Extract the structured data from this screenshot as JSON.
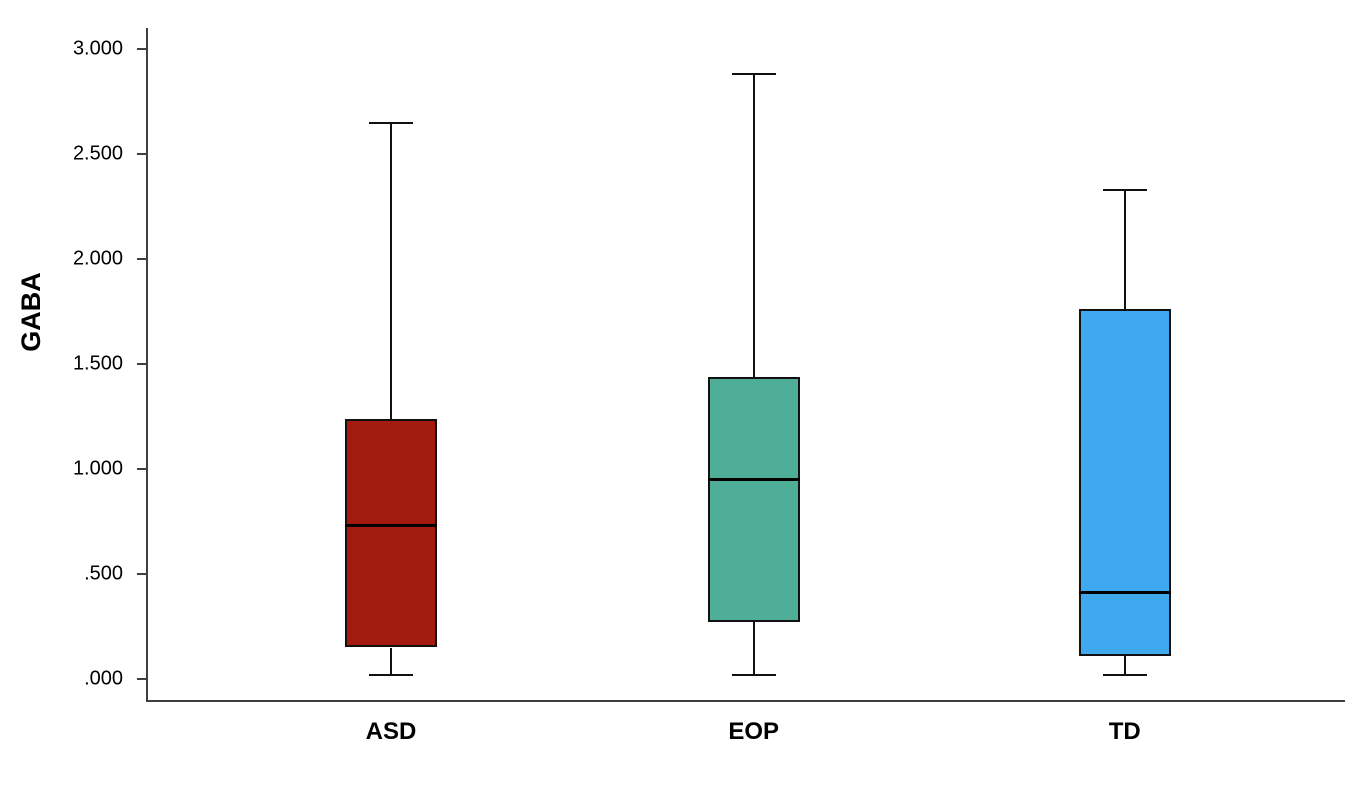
{
  "chart_data": {
    "type": "boxplot",
    "title": "",
    "xlabel": "",
    "ylabel": "GABA",
    "categories": [
      "ASD",
      "EOP",
      "TD"
    ],
    "series": [
      {
        "category": "ASD",
        "min": 0.02,
        "q1": 0.15,
        "median": 0.73,
        "q3": 1.24,
        "max": 2.65,
        "color": "#A21B0E"
      },
      {
        "category": "EOP",
        "min": 0.02,
        "q1": 0.27,
        "median": 0.95,
        "q3": 1.44,
        "max": 2.88,
        "color": "#4FAE98"
      },
      {
        "category": "TD",
        "min": 0.02,
        "q1": 0.11,
        "median": 0.41,
        "q3": 1.76,
        "max": 2.33,
        "color": "#3FA9F0"
      }
    ],
    "y_ticks": [
      ".000",
      ".500",
      "1.000",
      "1.500",
      "2.000",
      "2.500",
      "3.000"
    ],
    "y_tick_values": [
      0,
      0.5,
      1.0,
      1.5,
      2.0,
      2.5,
      3.0
    ],
    "ylim": [
      -0.1,
      3.1
    ],
    "grid": false,
    "legend": false,
    "box_fill_opacity": 1
  }
}
